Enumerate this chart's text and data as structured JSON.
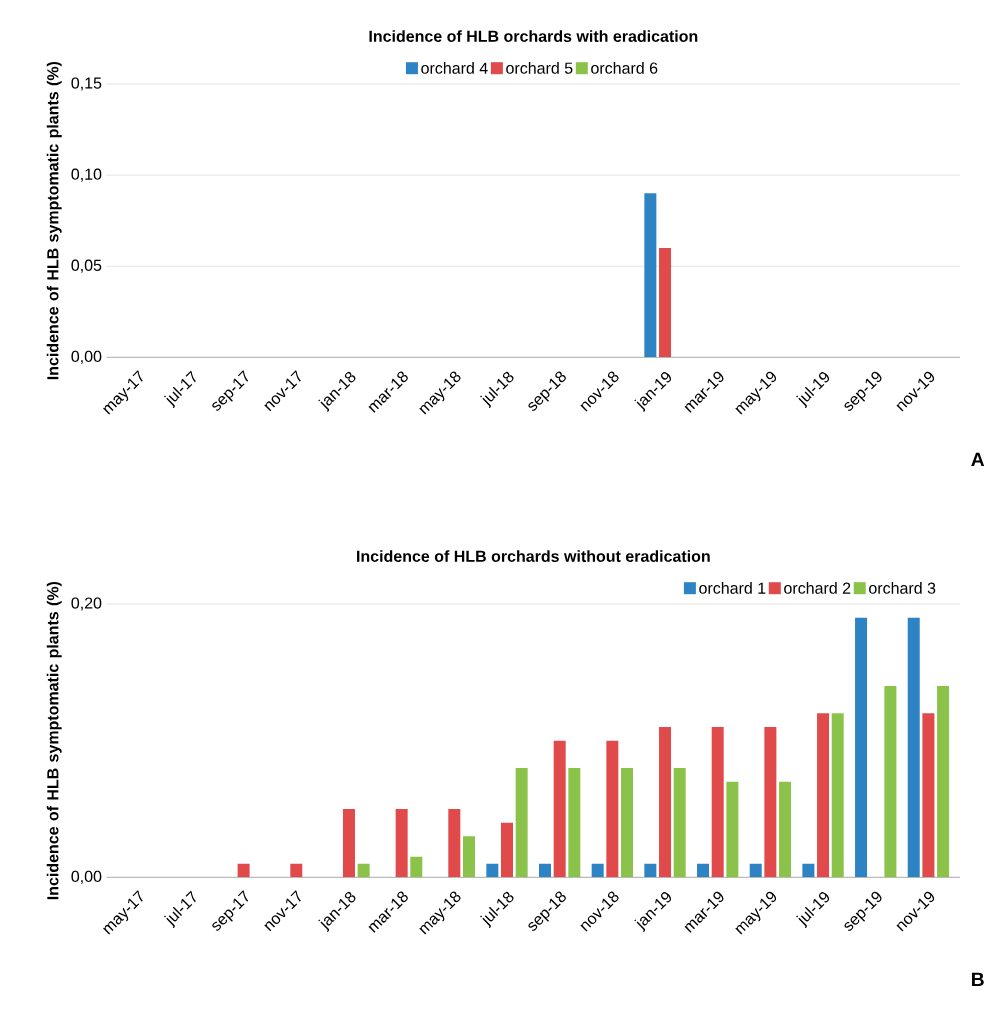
{
  "chart_data": [
    {
      "type": "bar",
      "title": "Incidence of HLB orchards with eradication",
      "ylabel": "Incidence of HLB symptomatic plants (%)",
      "categories": [
        "may-17",
        "jul-17",
        "sep-17",
        "nov-17",
        "jan-18",
        "mar-18",
        "may-18",
        "jul-18",
        "sep-18",
        "nov-18",
        "jan-19",
        "mar-19",
        "may-19",
        "jul-19",
        "sep-19",
        "nov-19"
      ],
      "series": [
        {
          "name": "orchard 4",
          "color": "#2e83c5",
          "values": [
            0,
            0,
            0,
            0,
            0,
            0,
            0,
            0,
            0,
            0,
            0.09,
            0,
            0,
            0,
            0,
            0
          ]
        },
        {
          "name": "orchard 5",
          "color": "#e04a4a",
          "values": [
            0,
            0,
            0,
            0,
            0,
            0,
            0,
            0,
            0,
            0,
            0.06,
            0,
            0,
            0,
            0,
            0
          ]
        },
        {
          "name": "orchard 6",
          "color": "#8bc34a",
          "values": [
            0,
            0,
            0,
            0,
            0,
            0,
            0,
            0,
            0,
            0,
            0,
            0,
            0,
            0,
            0,
            0
          ]
        }
      ],
      "ylim": [
        0,
        0.15
      ],
      "yticks": [
        {
          "value": 0,
          "label": "0,00"
        },
        {
          "value": 0.05,
          "label": "0,05"
        },
        {
          "value": 0.1,
          "label": "0,10"
        },
        {
          "value": 0.15,
          "label": "0,15"
        }
      ],
      "grid": "y",
      "legend": "top",
      "annotations": [
        "A"
      ]
    },
    {
      "type": "bar",
      "title": "Incidence of HLB orchards without eradication",
      "ylabel": "Incidence of HLB symptomatic plants (%)",
      "categories": [
        "may-17",
        "jul-17",
        "sep-17",
        "nov-17",
        "jan-18",
        "mar-18",
        "may-18",
        "jul-18",
        "sep-18",
        "nov-18",
        "jan-19",
        "mar-19",
        "may-19",
        "jul-19",
        "sep-19",
        "nov-19"
      ],
      "series": [
        {
          "name": "orchard 1",
          "color": "#2e83c5",
          "values": [
            0,
            0,
            0,
            0,
            0,
            0,
            0,
            0.01,
            0.01,
            0.01,
            0.01,
            0.01,
            0.01,
            0.01,
            0.19,
            0.19
          ]
        },
        {
          "name": "orchard 2",
          "color": "#e04a4a",
          "values": [
            0,
            0,
            0.01,
            0.01,
            0.05,
            0.05,
            0.05,
            0.04,
            0.1,
            0.1,
            0.11,
            0.11,
            0.11,
            0.12,
            null,
            0.12
          ]
        },
        {
          "name": "orchard 3",
          "color": "#8bc34a",
          "values": [
            0,
            0,
            0,
            0,
            0.01,
            0.015,
            0.03,
            0.08,
            0.08,
            0.08,
            0.08,
            0.07,
            0.07,
            0.12,
            0.14,
            0.14
          ]
        }
      ],
      "ylim": [
        0,
        0.2
      ],
      "yticks": [
        {
          "value": 0,
          "label": "0,00"
        },
        {
          "value": 0.2,
          "label": "0,20"
        }
      ],
      "grid": "y",
      "legend": "top right",
      "annotations": [
        "B"
      ]
    }
  ]
}
